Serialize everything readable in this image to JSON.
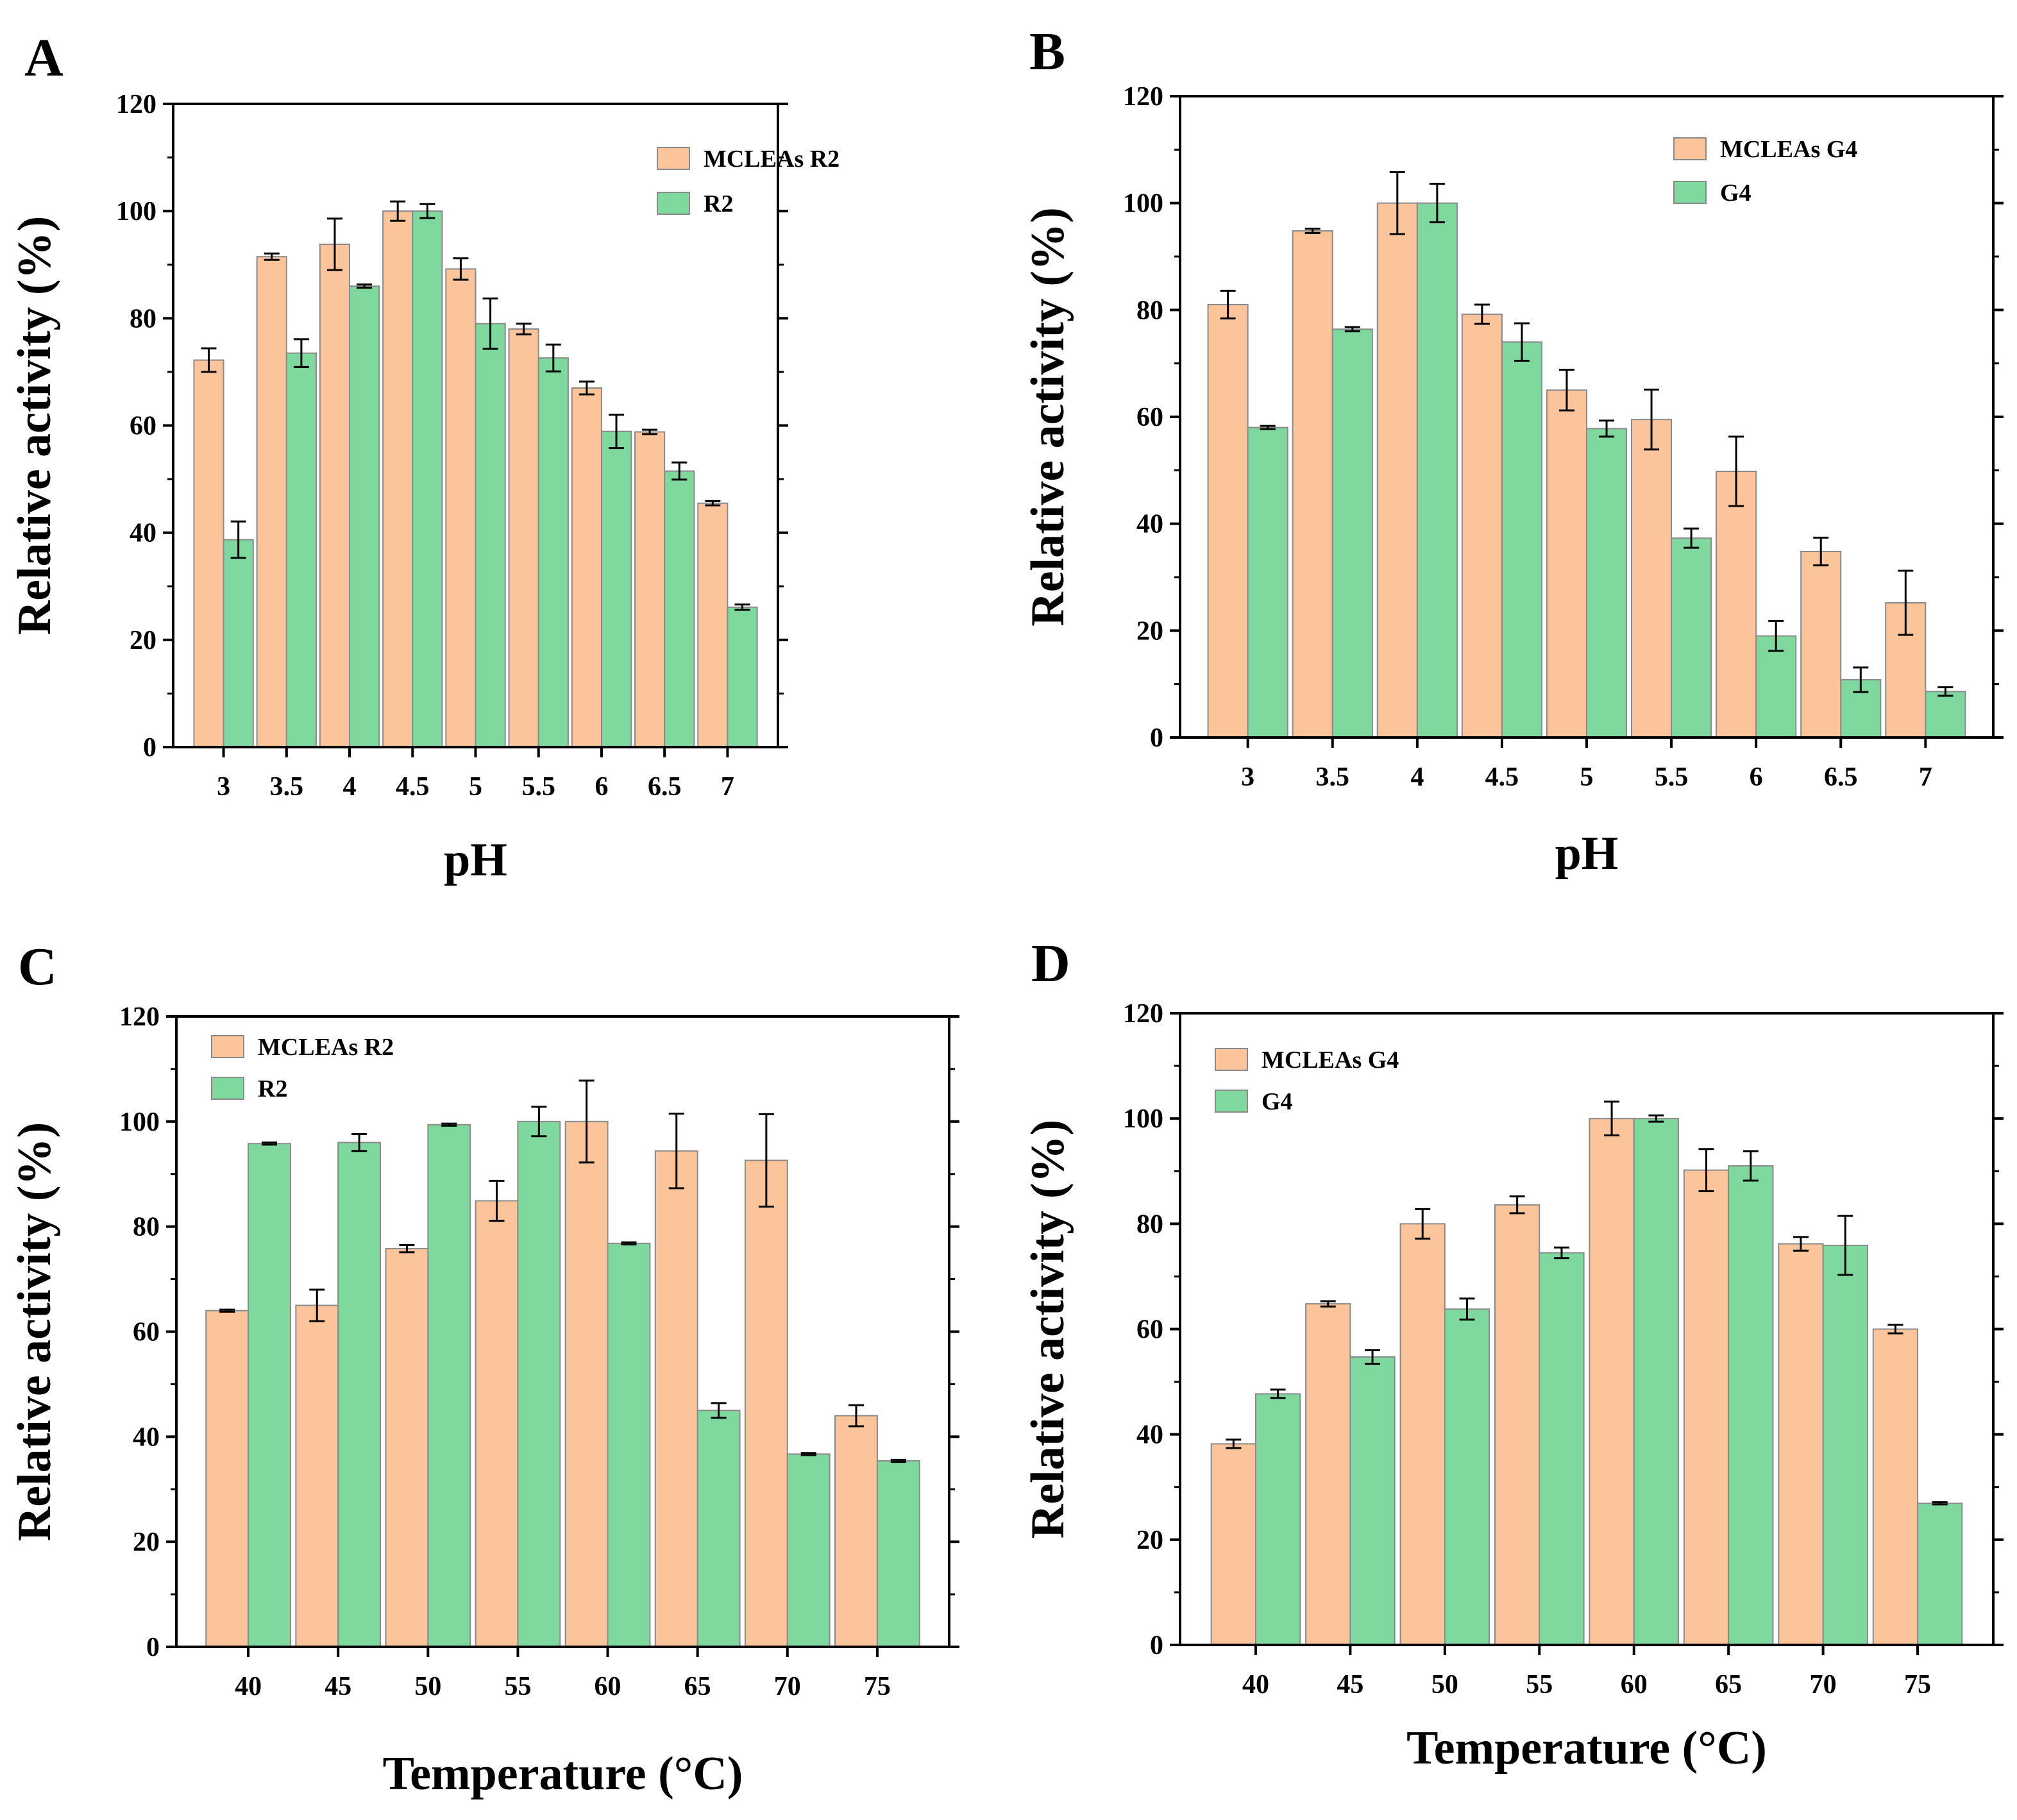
{
  "colors": {
    "series1": "#fbc49b",
    "series2": "#7fd99e",
    "stroke": "#8a8a8a",
    "axis": "#000000"
  },
  "chart_data": [
    {
      "panel": "A",
      "type": "bar",
      "xlabel": "pH",
      "ylabel": "Relative activity (%)",
      "ylim": [
        0,
        120
      ],
      "yticks": [
        "0",
        "20",
        "40",
        "60",
        "80",
        "100",
        "120"
      ],
      "categories": [
        "3",
        "3.5",
        "4",
        "4.5",
        "5",
        "5.5",
        "6",
        "6.5",
        "7"
      ],
      "series": [
        {
          "name": "MCLEAs R2",
          "values": [
            72.2,
            91.5,
            93.8,
            100,
            89.2,
            78,
            67,
            58.8,
            45.5
          ],
          "errors": [
            2.2,
            0.6,
            4.8,
            1.8,
            2,
            1,
            1.2,
            0.4,
            0.4
          ]
        },
        {
          "name": "R2",
          "values": [
            38.7,
            73.5,
            86,
            100,
            79,
            72.6,
            58.9,
            51.5,
            26.1
          ],
          "errors": [
            3.4,
            2.6,
            0.3,
            1.3,
            4.7,
            2.5,
            3.1,
            1.6,
            0.5
          ]
        }
      ],
      "legend_position": "top-right"
    },
    {
      "panel": "B",
      "type": "bar",
      "xlabel": "pH",
      "ylabel": "Relative activity (%)",
      "ylim": [
        0,
        120
      ],
      "yticks": [
        "0",
        "20",
        "40",
        "60",
        "80",
        "100",
        "120"
      ],
      "categories": [
        "3",
        "3.5",
        "4",
        "4.5",
        "5",
        "5.5",
        "6",
        "6.5",
        "7"
      ],
      "series": [
        {
          "name": "MCLEAs G4",
          "values": [
            81,
            94.8,
            100,
            79.2,
            65,
            59.5,
            49.8,
            34.8,
            25.2
          ],
          "errors": [
            2.6,
            0.4,
            5.8,
            1.8,
            3.8,
            5.6,
            6.5,
            2.6,
            6
          ]
        },
        {
          "name": "G4",
          "values": [
            58,
            76.4,
            100,
            74,
            57.8,
            37.3,
            19,
            10.8,
            8.6
          ],
          "errors": [
            0.3,
            0.4,
            3.6,
            3.5,
            1.5,
            1.8,
            2.8,
            2.3,
            0.8
          ]
        }
      ],
      "legend_position": "top-right"
    },
    {
      "panel": "C",
      "type": "bar",
      "xlabel": "Temperature (°C)",
      "ylabel": "Relative activity (%)",
      "ylim": [
        0,
        120
      ],
      "yticks": [
        "0",
        "20",
        "40",
        "60",
        "80",
        "100",
        "120"
      ],
      "categories": [
        "40",
        "45",
        "50",
        "55",
        "60",
        "65",
        "70",
        "75"
      ],
      "series": [
        {
          "name": "MCLEAs R2",
          "values": [
            64,
            65,
            75.8,
            84.9,
            100,
            94.4,
            92.6,
            44
          ],
          "errors": [
            0.2,
            3,
            0.7,
            3.8,
            7.8,
            7.1,
            8.8,
            2
          ]
        },
        {
          "name": "R2",
          "values": [
            95.8,
            96,
            99.4,
            100,
            76.8,
            45,
            36.7,
            35.4
          ],
          "errors": [
            0.2,
            1.6,
            0.2,
            2.8,
            0.2,
            1.4,
            0.2,
            0.2
          ]
        }
      ],
      "legend_position": "top-left"
    },
    {
      "panel": "D",
      "type": "bar",
      "xlabel": "Temperature (°C)",
      "ylabel": "Relative activity (%)",
      "ylim": [
        0,
        120
      ],
      "yticks": [
        "0",
        "20",
        "40",
        "60",
        "80",
        "100",
        "120"
      ],
      "categories": [
        "40",
        "45",
        "50",
        "55",
        "60",
        "65",
        "70",
        "75"
      ],
      "series": [
        {
          "name": "MCLEAs G4",
          "values": [
            38.2,
            64.8,
            80,
            83.6,
            100,
            90.2,
            76.2,
            60
          ],
          "errors": [
            0.8,
            0.5,
            2.8,
            1.6,
            3.2,
            4,
            1.3,
            0.8
          ]
        },
        {
          "name": "G4",
          "values": [
            47.7,
            54.7,
            63.8,
            74.5,
            100,
            91,
            75.9,
            26.9
          ],
          "errors": [
            0.8,
            1.3,
            2,
            1,
            0.6,
            2.8,
            5.6,
            0.2
          ]
        }
      ],
      "legend_position": "top-left"
    }
  ]
}
